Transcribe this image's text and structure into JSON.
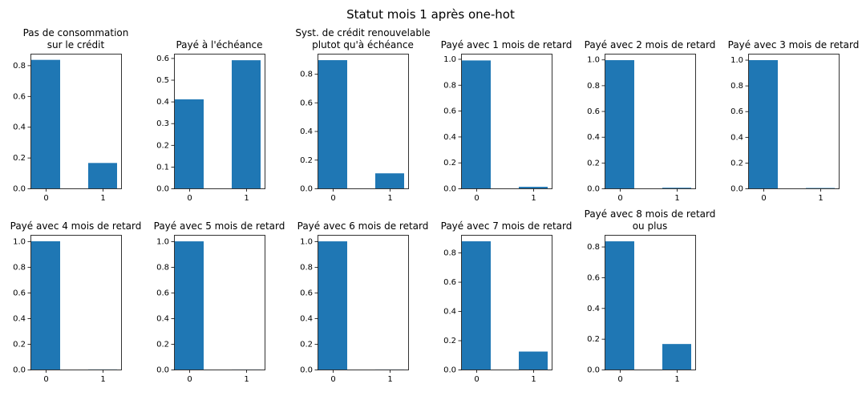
{
  "figure": {
    "suptitle": "Statut mois 1 après one-hot",
    "bar_color": "#1f77b4"
  },
  "chart_data": [
    {
      "type": "bar",
      "title": [
        "Pas de consommation",
        "sur le crédit"
      ],
      "categories": [
        "0",
        "1"
      ],
      "values": [
        0.835,
        0.165
      ],
      "ylim": [
        0,
        0.875
      ],
      "yticks": [
        0.0,
        0.2,
        0.4,
        0.6,
        0.8
      ],
      "grid": false
    },
    {
      "type": "bar",
      "title": [
        "Payé à l'échéance"
      ],
      "categories": [
        "0",
        "1"
      ],
      "values": [
        0.41,
        0.59
      ],
      "ylim": [
        0,
        0.62
      ],
      "yticks": [
        0.0,
        0.1,
        0.2,
        0.3,
        0.4,
        0.5,
        0.6
      ],
      "grid": false
    },
    {
      "type": "bar",
      "title": [
        "Syst. de crédit renouvelable",
        "plutot qu'à échéance"
      ],
      "categories": [
        "0",
        "1"
      ],
      "values": [
        0.895,
        0.105
      ],
      "ylim": [
        0,
        0.94
      ],
      "yticks": [
        0.0,
        0.2,
        0.4,
        0.6,
        0.8
      ],
      "grid": false
    },
    {
      "type": "bar",
      "title": [
        "Payé avec 1 mois de retard"
      ],
      "categories": [
        "0",
        "1"
      ],
      "values": [
        0.988,
        0.012
      ],
      "ylim": [
        0,
        1.04
      ],
      "yticks": [
        0.0,
        0.2,
        0.4,
        0.6,
        0.8,
        1.0
      ],
      "grid": false
    },
    {
      "type": "bar",
      "title": [
        "Payé avec 2 mois de retard"
      ],
      "categories": [
        "0",
        "1"
      ],
      "values": [
        0.995,
        0.005
      ],
      "ylim": [
        0,
        1.045
      ],
      "yticks": [
        0.0,
        0.2,
        0.4,
        0.6,
        0.8,
        1.0
      ],
      "grid": false
    },
    {
      "type": "bar",
      "title": [
        "Payé avec 3 mois de retard"
      ],
      "categories": [
        "0",
        "1"
      ],
      "values": [
        0.997,
        0.003
      ],
      "ylim": [
        0,
        1.047
      ],
      "yticks": [
        0.0,
        0.2,
        0.4,
        0.6,
        0.8,
        1.0
      ],
      "grid": false
    },
    {
      "type": "bar",
      "title": [
        "Payé avec 4 mois de retard"
      ],
      "categories": [
        "0",
        "1"
      ],
      "values": [
        0.999,
        0.001
      ],
      "ylim": [
        0,
        1.049
      ],
      "yticks": [
        0.0,
        0.2,
        0.4,
        0.6,
        0.8,
        1.0
      ],
      "grid": false
    },
    {
      "type": "bar",
      "title": [
        "Payé avec 5 mois de retard"
      ],
      "categories": [
        "0",
        "1"
      ],
      "values": [
        0.9995,
        0.0005
      ],
      "ylim": [
        0,
        1.05
      ],
      "yticks": [
        0.0,
        0.2,
        0.4,
        0.6,
        0.8,
        1.0
      ],
      "grid": false
    },
    {
      "type": "bar",
      "title": [
        "Payé avec 6 mois de retard"
      ],
      "categories": [
        "0",
        "1"
      ],
      "values": [
        0.9995,
        0.0005
      ],
      "ylim": [
        0,
        1.05
      ],
      "yticks": [
        0.0,
        0.2,
        0.4,
        0.6,
        0.8,
        1.0
      ],
      "grid": false
    },
    {
      "type": "bar",
      "title": [
        "Payé avec 7 mois de retard"
      ],
      "categories": [
        "0",
        "1"
      ],
      "values": [
        0.877,
        0.123
      ],
      "ylim": [
        0,
        0.921
      ],
      "yticks": [
        0.0,
        0.2,
        0.4,
        0.6,
        0.8
      ],
      "grid": false
    },
    {
      "type": "bar",
      "title": [
        "Payé avec 8 mois de retard",
        "ou plus"
      ],
      "categories": [
        "0",
        "1"
      ],
      "values": [
        0.834,
        0.166
      ],
      "ylim": [
        0,
        0.876
      ],
      "yticks": [
        0.0,
        0.2,
        0.4,
        0.6,
        0.8
      ],
      "grid": false
    }
  ]
}
